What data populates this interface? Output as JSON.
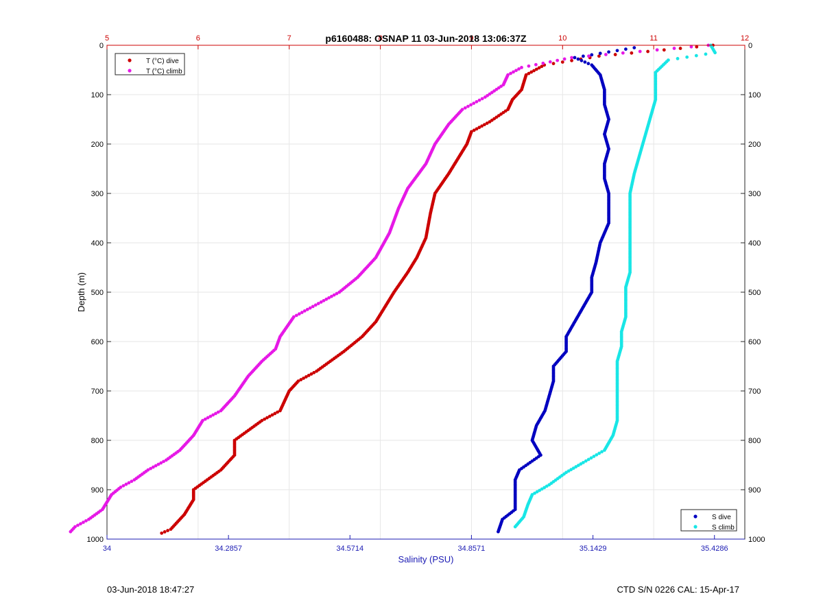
{
  "chart_data": {
    "type": "scatter",
    "title": "p6160488: OSNAP 11 03-Jun-2018 13:06:37Z",
    "ylabel": "Depth (m)",
    "xlabel_bottom": "Salinity (PSU)",
    "xlabel_top": "",
    "y_range": [
      0,
      1000
    ],
    "y_reversed": true,
    "y_ticks": [
      0,
      100,
      200,
      300,
      400,
      500,
      600,
      700,
      800,
      900,
      1000
    ],
    "x_top_range": [
      5,
      12
    ],
    "x_top_ticks": [
      5,
      6,
      7,
      8,
      9,
      10,
      11,
      12
    ],
    "x_bottom_range": [
      34,
      35.5
    ],
    "x_bottom_ticks": [
      34,
      34.2857,
      34.5714,
      34.8571,
      35.1429,
      35.4286
    ],
    "x_bottom_tick_labels": [
      "34",
      "34.2857",
      "34.5714",
      "34.8571",
      "35.1429",
      "35.4286"
    ],
    "grid": true,
    "legend_temperature": {
      "placement": "top-left",
      "entries": [
        "T (°C) dive",
        "T (°C) climb"
      ]
    },
    "legend_salinity": {
      "placement": "bottom-right",
      "entries": [
        "S dive",
        "S climb"
      ]
    },
    "colors": {
      "t_dive": "#cc0000",
      "t_climb": "#e619e6",
      "s_dive": "#0000c0",
      "s_climb": "#19e6e6",
      "top_axis": "#cc0000",
      "bottom_axis": "#1a1ab3",
      "grid": "#e6e6e6"
    },
    "series": [
      {
        "name": "T (°C) dive",
        "axis": "top",
        "points": [
          [
            11.65,
            0
          ],
          [
            10.4,
            22
          ],
          [
            9.8,
            40
          ],
          [
            9.6,
            60
          ],
          [
            9.55,
            90
          ],
          [
            9.45,
            110
          ],
          [
            9.4,
            130
          ],
          [
            9.2,
            155
          ],
          [
            9.0,
            175
          ],
          [
            8.95,
            200
          ],
          [
            8.85,
            230
          ],
          [
            8.75,
            260
          ],
          [
            8.6,
            300
          ],
          [
            8.55,
            340
          ],
          [
            8.5,
            390
          ],
          [
            8.4,
            430
          ],
          [
            8.3,
            460
          ],
          [
            8.15,
            500
          ],
          [
            8.05,
            530
          ],
          [
            7.95,
            560
          ],
          [
            7.8,
            590
          ],
          [
            7.6,
            620
          ],
          [
            7.45,
            640
          ],
          [
            7.3,
            660
          ],
          [
            7.1,
            680
          ],
          [
            7.0,
            700
          ],
          [
            6.9,
            740
          ],
          [
            6.7,
            760
          ],
          [
            6.55,
            780
          ],
          [
            6.4,
            800
          ],
          [
            6.4,
            830
          ],
          [
            6.25,
            860
          ],
          [
            6.1,
            880
          ],
          [
            5.95,
            900
          ],
          [
            5.95,
            920
          ],
          [
            5.85,
            950
          ],
          [
            5.7,
            980
          ],
          [
            5.6,
            988
          ]
        ]
      },
      {
        "name": "T (°C) climb",
        "axis": "top",
        "points": [
          [
            11.6,
            0
          ],
          [
            10.1,
            25
          ],
          [
            9.55,
            45
          ],
          [
            9.4,
            60
          ],
          [
            9.35,
            80
          ],
          [
            9.15,
            105
          ],
          [
            8.9,
            130
          ],
          [
            8.75,
            160
          ],
          [
            8.6,
            200
          ],
          [
            8.5,
            240
          ],
          [
            8.3,
            290
          ],
          [
            8.2,
            330
          ],
          [
            8.1,
            380
          ],
          [
            7.95,
            430
          ],
          [
            7.75,
            470
          ],
          [
            7.55,
            500
          ],
          [
            7.35,
            520
          ],
          [
            7.05,
            550
          ],
          [
            6.9,
            590
          ],
          [
            6.85,
            615
          ],
          [
            6.7,
            640
          ],
          [
            6.55,
            670
          ],
          [
            6.4,
            710
          ],
          [
            6.25,
            740
          ],
          [
            6.05,
            760
          ],
          [
            5.95,
            790
          ],
          [
            5.8,
            820
          ],
          [
            5.65,
            840
          ],
          [
            5.45,
            860
          ],
          [
            5.3,
            880
          ],
          [
            5.15,
            895
          ],
          [
            5.05,
            910
          ],
          [
            4.95,
            940
          ],
          [
            4.8,
            960
          ],
          [
            4.65,
            975
          ],
          [
            4.6,
            985
          ]
        ]
      },
      {
        "name": "S dive",
        "axis": "bottom",
        "points": [
          [
            35.24,
            5
          ],
          [
            35.1,
            25
          ],
          [
            35.14,
            40
          ],
          [
            35.16,
            60
          ],
          [
            35.17,
            90
          ],
          [
            35.17,
            120
          ],
          [
            35.18,
            150
          ],
          [
            35.17,
            180
          ],
          [
            35.18,
            210
          ],
          [
            35.17,
            240
          ],
          [
            35.17,
            270
          ],
          [
            35.18,
            300
          ],
          [
            35.18,
            330
          ],
          [
            35.18,
            360
          ],
          [
            35.16,
            400
          ],
          [
            35.15,
            440
          ],
          [
            35.14,
            470
          ],
          [
            35.14,
            500
          ],
          [
            35.12,
            530
          ],
          [
            35.1,
            560
          ],
          [
            35.08,
            590
          ],
          [
            35.08,
            620
          ],
          [
            35.05,
            650
          ],
          [
            35.05,
            680
          ],
          [
            35.04,
            710
          ],
          [
            35.03,
            740
          ],
          [
            35.01,
            770
          ],
          [
            35.0,
            800
          ],
          [
            35.02,
            830
          ],
          [
            34.97,
            860
          ],
          [
            34.96,
            880
          ],
          [
            34.96,
            910
          ],
          [
            34.96,
            940
          ],
          [
            34.93,
            960
          ],
          [
            34.92,
            985
          ]
        ]
      },
      {
        "name": "S climb",
        "axis": "bottom",
        "points": [
          [
            35.42,
            0
          ],
          [
            35.43,
            15
          ],
          [
            35.32,
            30
          ],
          [
            35.29,
            55
          ],
          [
            35.29,
            80
          ],
          [
            35.29,
            110
          ],
          [
            35.28,
            140
          ],
          [
            35.27,
            170
          ],
          [
            35.26,
            200
          ],
          [
            35.25,
            230
          ],
          [
            35.24,
            260
          ],
          [
            35.23,
            300
          ],
          [
            35.23,
            330
          ],
          [
            35.23,
            360
          ],
          [
            35.23,
            400
          ],
          [
            35.23,
            430
          ],
          [
            35.23,
            460
          ],
          [
            35.22,
            490
          ],
          [
            35.22,
            520
          ],
          [
            35.22,
            550
          ],
          [
            35.21,
            580
          ],
          [
            35.21,
            610
          ],
          [
            35.2,
            640
          ],
          [
            35.2,
            670
          ],
          [
            35.2,
            700
          ],
          [
            35.2,
            730
          ],
          [
            35.2,
            760
          ],
          [
            35.19,
            790
          ],
          [
            35.17,
            820
          ],
          [
            35.12,
            845
          ],
          [
            35.08,
            865
          ],
          [
            35.04,
            890
          ],
          [
            35.0,
            910
          ],
          [
            34.99,
            930
          ],
          [
            34.98,
            955
          ],
          [
            34.96,
            975
          ]
        ]
      }
    ]
  },
  "footer": {
    "left": "03-Jun-2018 18:47:27",
    "right": "CTD S/N 0226  CAL: 15-Apr-17"
  }
}
